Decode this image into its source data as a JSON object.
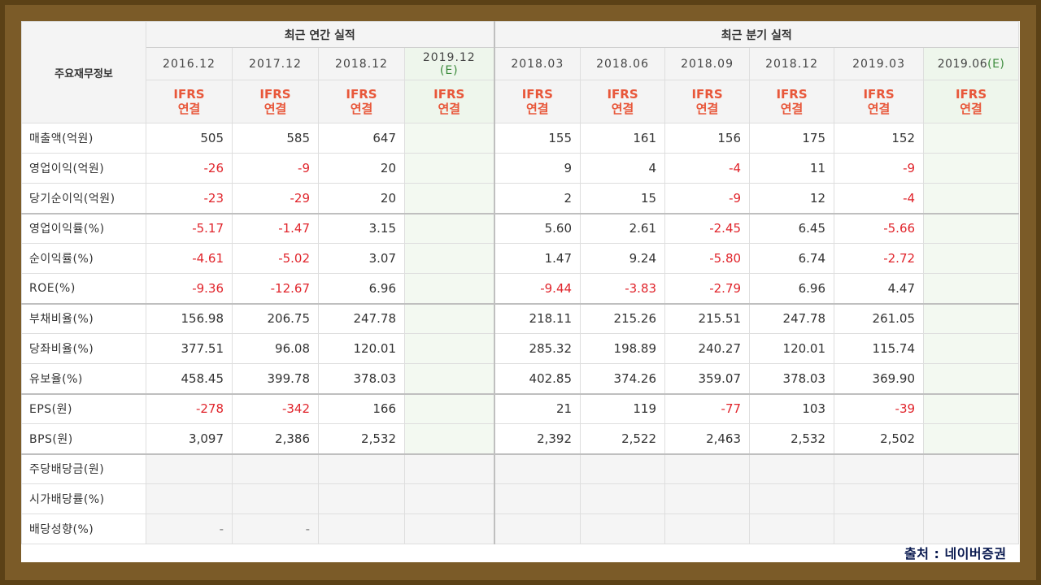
{
  "header": {
    "main_label": "주요재무정보",
    "annual_group": "최근 연간 실적",
    "quarter_group": "최근 분기 실적",
    "ifrs_line1": "IFRS",
    "ifrs_line2": "연결",
    "annual_periods": [
      "2016.12",
      "2017.12",
      "2018.12"
    ],
    "annual_estimate": {
      "period": "2019.12",
      "mark": "(E)"
    },
    "quarter_periods": [
      "2018.03",
      "2018.06",
      "2018.09",
      "2018.12",
      "2019.03"
    ],
    "quarter_estimate": {
      "period": "2019.06",
      "mark": "(E)"
    }
  },
  "rows": [
    {
      "label": "매출액(억원)",
      "annual": [
        "505",
        "585",
        "647"
      ],
      "quarter": [
        "155",
        "161",
        "156",
        "175",
        "152"
      ]
    },
    {
      "label": "영업이익(억원)",
      "annual": [
        "-26",
        "-9",
        "20"
      ],
      "quarter": [
        "9",
        "4",
        "-4",
        "11",
        "-9"
      ]
    },
    {
      "label": "당기순이익(억원)",
      "annual": [
        "-23",
        "-29",
        "20"
      ],
      "quarter": [
        "2",
        "15",
        "-9",
        "12",
        "-4"
      ]
    },
    {
      "label": "영업이익률(%)",
      "annual": [
        "-5.17",
        "-1.47",
        "3.15"
      ],
      "quarter": [
        "5.60",
        "2.61",
        "-2.45",
        "6.45",
        "-5.66"
      ]
    },
    {
      "label": "순이익률(%)",
      "annual": [
        "-4.61",
        "-5.02",
        "3.07"
      ],
      "quarter": [
        "1.47",
        "9.24",
        "-5.80",
        "6.74",
        "-2.72"
      ]
    },
    {
      "label": "ROE(%)",
      "annual": [
        "-9.36",
        "-12.67",
        "6.96"
      ],
      "quarter": [
        "-9.44",
        "-3.83",
        "-2.79",
        "6.96",
        "4.47"
      ]
    },
    {
      "label": "부채비율(%)",
      "annual": [
        "156.98",
        "206.75",
        "247.78"
      ],
      "quarter": [
        "218.11",
        "215.26",
        "215.51",
        "247.78",
        "261.05"
      ]
    },
    {
      "label": "당좌비율(%)",
      "annual": [
        "377.51",
        "96.08",
        "120.01"
      ],
      "quarter": [
        "285.32",
        "198.89",
        "240.27",
        "120.01",
        "115.74"
      ]
    },
    {
      "label": "유보율(%)",
      "annual": [
        "458.45",
        "399.78",
        "378.03"
      ],
      "quarter": [
        "402.85",
        "374.26",
        "359.07",
        "378.03",
        "369.90"
      ]
    },
    {
      "label": "EPS(원)",
      "annual": [
        "-278",
        "-342",
        "166"
      ],
      "quarter": [
        "21",
        "119",
        "-77",
        "103",
        "-39"
      ]
    },
    {
      "label": "BPS(원)",
      "annual": [
        "3,097",
        "2,386",
        "2,532"
      ],
      "quarter": [
        "2,392",
        "2,522",
        "2,463",
        "2,532",
        "2,502"
      ]
    },
    {
      "label": "주당배당금(원)",
      "annual": [
        "",
        "",
        ""
      ],
      "quarter": [
        "",
        "",
        "",
        "",
        ""
      ]
    },
    {
      "label": "시가배당률(%)",
      "annual": [
        "",
        "",
        ""
      ],
      "quarter": [
        "",
        "",
        "",
        "",
        ""
      ]
    },
    {
      "label": "배당성향(%)",
      "annual": [
        "-",
        "-",
        ""
      ],
      "quarter": [
        "",
        "",
        "",
        "",
        ""
      ]
    }
  ],
  "source": "출처 : 네이버증권",
  "colors": {
    "negative": "#e0242b",
    "ifrs": "#e8573a",
    "estimate_bg": "#f3f9f1",
    "frame": "#7b5b28"
  }
}
